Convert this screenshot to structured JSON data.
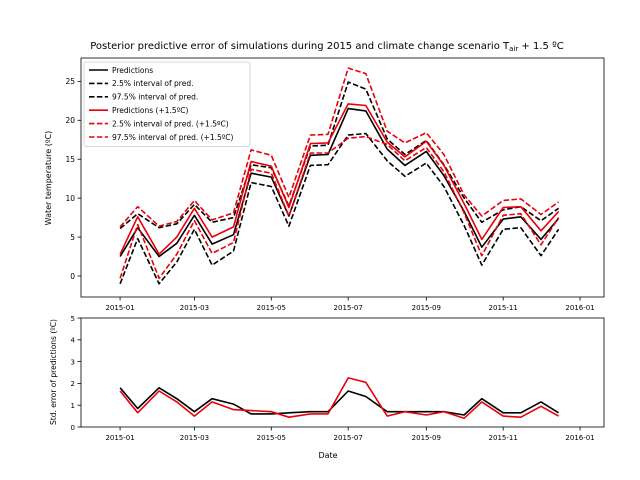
{
  "chart_data": [
    {
      "type": "line",
      "title": "Posterior predictive error of simulations during 2015 and climate change scenario T",
      "title_sub": "air",
      "title_suffix": " + 1.5 ºC",
      "xlabel": "",
      "ylabel": "Water temperature (ºC)",
      "x": [
        "2015-01-01",
        "2015-01-15",
        "2015-02-01",
        "2015-02-15",
        "2015-03-01",
        "2015-03-15",
        "2015-04-01",
        "2015-04-15",
        "2015-05-01",
        "2015-05-15",
        "2015-06-01",
        "2015-06-15",
        "2015-07-01",
        "2015-07-15",
        "2015-08-01",
        "2015-08-15",
        "2015-09-01",
        "2015-09-15",
        "2015-10-01",
        "2015-10-15",
        "2015-11-01",
        "2015-11-15",
        "2015-12-01",
        "2015-12-15"
      ],
      "x_ticks": [
        "2015-01",
        "2015-03",
        "2015-05",
        "2015-07",
        "2015-09",
        "2015-11",
        "2016-01"
      ],
      "y_ticks": [
        0,
        5,
        10,
        15,
        20,
        25
      ],
      "ylim": [
        -2.7,
        28
      ],
      "grid": false,
      "legend_position": "top-left",
      "series": [
        {
          "name": "Predictions",
          "color": "#000000",
          "dash": "solid",
          "values": [
            2.5,
            6.2,
            2.5,
            4.2,
            7.8,
            4.1,
            5.3,
            13.2,
            12.7,
            7.7,
            15.5,
            15.6,
            21.5,
            21.2,
            16.3,
            14.2,
            16.0,
            12.9,
            8.3,
            3.7,
            7.3,
            7.6,
            4.7,
            7.4
          ]
        },
        {
          "name": "2.5% interval of pred.",
          "color": "#000000",
          "dash": "dashed",
          "values": [
            -1.0,
            4.8,
            -1.0,
            1.8,
            6.0,
            1.4,
            3.2,
            12.0,
            11.5,
            6.4,
            14.2,
            14.3,
            18.1,
            18.3,
            14.8,
            12.8,
            14.5,
            11.5,
            6.5,
            1.4,
            6.0,
            6.2,
            2.6,
            6.0
          ]
        },
        {
          "name": "97.5% interval of pred.",
          "color": "#000000",
          "dash": "dashed",
          "values": [
            6.1,
            8.0,
            6.2,
            6.7,
            9.2,
            6.9,
            7.5,
            14.3,
            13.9,
            9.0,
            16.7,
            16.8,
            24.9,
            24.0,
            17.6,
            15.6,
            17.4,
            14.3,
            10.0,
            6.9,
            8.5,
            8.9,
            7.1,
            8.7
          ]
        },
        {
          "name": "Predictions (+1.5ºC)",
          "color": "#e8000b",
          "dash": "solid",
          "values": [
            2.8,
            7.6,
            2.8,
            5.0,
            8.7,
            5.0,
            6.3,
            14.7,
            14.1,
            8.8,
            17.0,
            17.1,
            22.1,
            21.9,
            17.2,
            15.3,
            17.3,
            14.2,
            9.3,
            4.7,
            8.8,
            8.9,
            5.8,
            8.3
          ]
        },
        {
          "name": "2.5% interval of pred. (+1.5ºC)",
          "color": "#e8000b",
          "dash": "dashed",
          "values": [
            -0.3,
            6.6,
            -0.3,
            2.8,
            7.1,
            2.9,
            4.3,
            13.7,
            13.2,
            7.7,
            15.8,
            15.8,
            17.7,
            17.9,
            16.9,
            14.8,
            16.5,
            13.4,
            8.1,
            2.6,
            7.8,
            8.0,
            4.0,
            7.5
          ]
        },
        {
          "name": "97.5% interval of pred. (+1.5ºC)",
          "color": "#e8000b",
          "dash": "dashed",
          "values": [
            6.3,
            8.9,
            6.4,
            7.0,
            9.7,
            7.2,
            8.1,
            16.2,
            15.5,
            10.1,
            18.1,
            18.2,
            26.7,
            26.0,
            18.6,
            17.1,
            18.4,
            15.6,
            10.4,
            7.7,
            9.7,
            9.9,
            7.9,
            9.5
          ]
        }
      ]
    },
    {
      "type": "line",
      "xlabel": "Date",
      "ylabel": "Std. error of predictions (ºC)",
      "x_ticks": [
        "2015-01",
        "2015-03",
        "2015-05",
        "2015-07",
        "2015-09",
        "2015-11",
        "2016-01"
      ],
      "y_ticks": [
        0,
        1,
        2,
        3,
        4,
        5
      ],
      "ylim": [
        0,
        5
      ],
      "grid": false,
      "series": [
        {
          "name": "",
          "color": "#000000",
          "dash": "solid",
          "values": [
            1.8,
            0.85,
            1.8,
            1.3,
            0.7,
            1.3,
            1.05,
            0.6,
            0.6,
            0.65,
            0.7,
            0.7,
            1.65,
            1.4,
            0.7,
            0.7,
            0.7,
            0.7,
            0.55,
            1.3,
            0.65,
            0.65,
            1.15,
            0.65
          ]
        },
        {
          "name": "",
          "color": "#e8000b",
          "dash": "solid",
          "values": [
            1.65,
            0.65,
            1.65,
            1.15,
            0.5,
            1.15,
            0.8,
            0.75,
            0.7,
            0.45,
            0.6,
            0.6,
            2.25,
            2.05,
            0.5,
            0.7,
            0.55,
            0.7,
            0.4,
            1.15,
            0.5,
            0.45,
            0.95,
            0.5
          ]
        }
      ]
    }
  ]
}
